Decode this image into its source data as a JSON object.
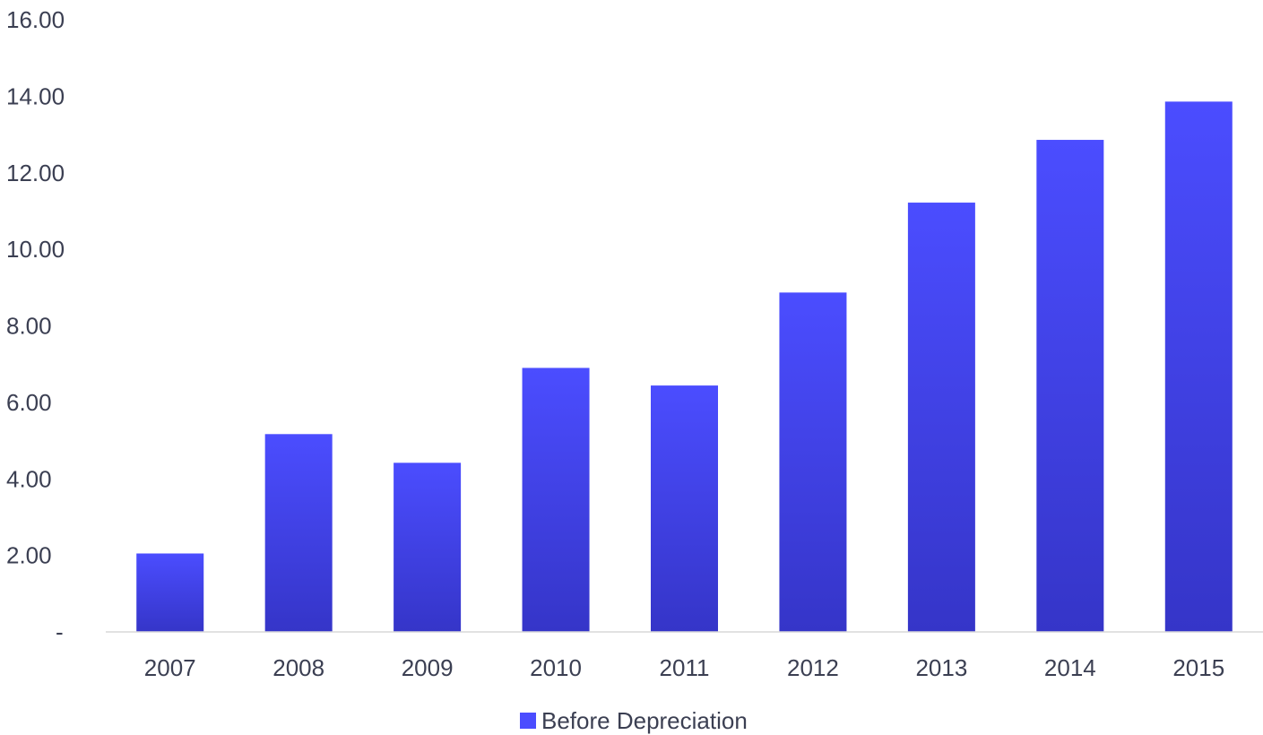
{
  "chart_data": {
    "type": "bar",
    "categories": [
      "2007",
      "2008",
      "2009",
      "2010",
      "2011",
      "2012",
      "2013",
      "2014",
      "2015"
    ],
    "series": [
      {
        "name": "Before Depreciation",
        "values": [
          2.05,
          5.17,
          4.42,
          6.9,
          6.44,
          8.87,
          11.22,
          12.86,
          13.86
        ]
      }
    ],
    "y_ticks": [
      "-",
      "2.00",
      "4.00",
      "6.00",
      "8.00",
      "10.00",
      "12.00",
      "14.00",
      "16.00"
    ],
    "ylim": [
      0,
      16
    ],
    "grid": false,
    "legend_position": "bottom",
    "colors": {
      "bar_top": "#4b4dff",
      "bar_bottom": "#3535c8",
      "axis_line": "#d9d9d9",
      "text": "#3b3f52"
    }
  }
}
